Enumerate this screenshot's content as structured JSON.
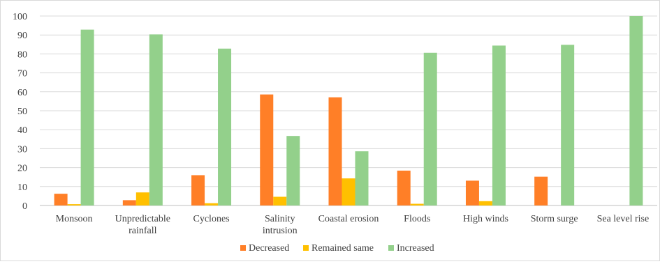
{
  "chart_data": {
    "type": "bar",
    "title": "",
    "xlabel": "",
    "ylabel": "",
    "ylim": [
      0,
      100
    ],
    "yticks": [
      0,
      10,
      20,
      30,
      40,
      50,
      60,
      70,
      80,
      90,
      100
    ],
    "grid": true,
    "legend_position": "bottom",
    "categories": [
      [
        "Monsoon"
      ],
      [
        "Unpredictable",
        "rainfall"
      ],
      [
        "Cyclones"
      ],
      [
        "Salinity",
        "intrusion"
      ],
      [
        "Coastal erosion"
      ],
      [
        "Floods"
      ],
      [
        "High winds"
      ],
      [
        "Storm surge"
      ],
      [
        "Sea level rise"
      ]
    ],
    "series": [
      {
        "name": "Decreased",
        "color": "#ff7f27",
        "values": [
          6.2,
          2.8,
          16.0,
          58.6,
          57.1,
          18.4,
          13.1,
          15.2,
          0
        ]
      },
      {
        "name": "Remained same",
        "color": "#ffc000",
        "values": [
          0.7,
          6.9,
          1.2,
          4.6,
          14.3,
          0.9,
          2.3,
          0,
          0
        ]
      },
      {
        "name": "Increased",
        "color": "#93d08b",
        "values": [
          92.8,
          90.3,
          82.8,
          36.7,
          28.6,
          80.6,
          84.4,
          84.8,
          100
        ]
      }
    ]
  }
}
